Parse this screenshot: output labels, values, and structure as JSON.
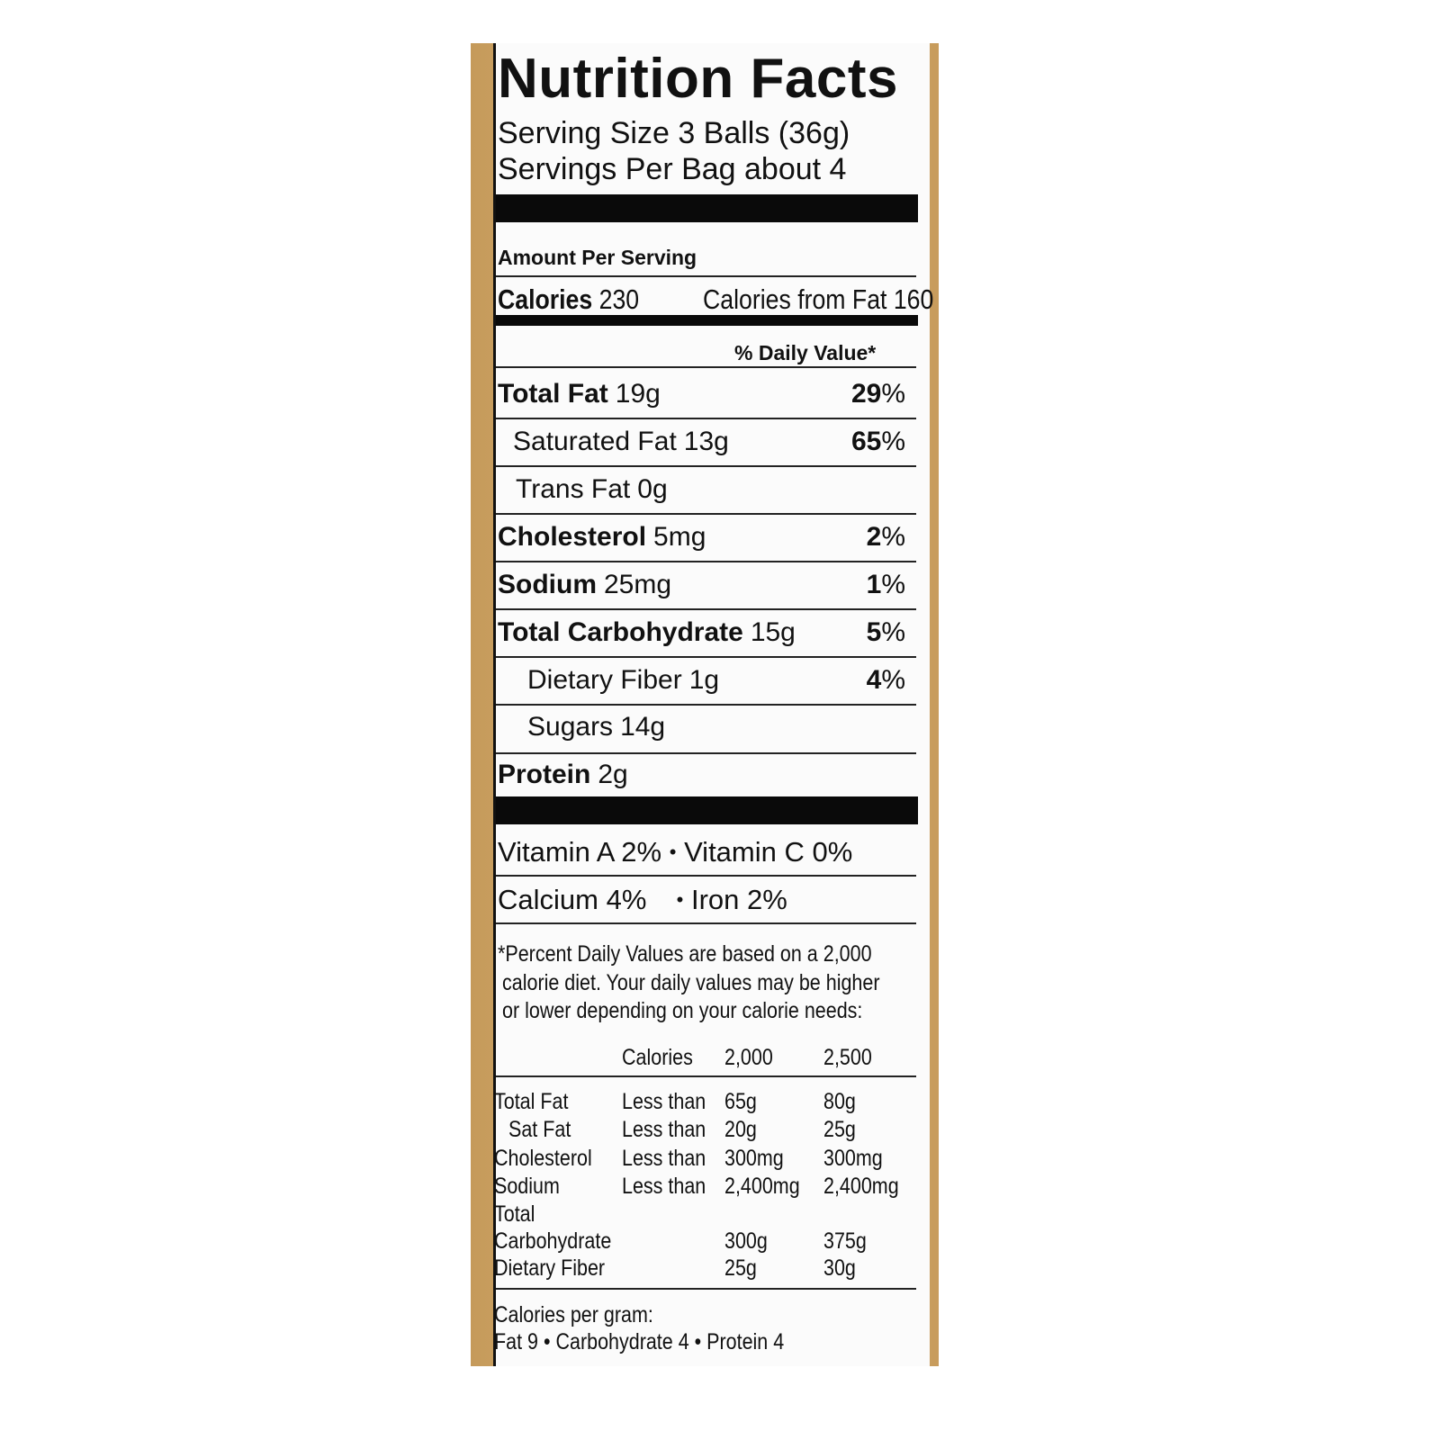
{
  "title": "Nutrition Facts",
  "serving_size": "Serving Size 3 Balls (36g)",
  "servings_per": "Servings Per Bag about 4",
  "amount_per_serving": "Amount Per Serving",
  "calories": {
    "label": "Calories",
    "value": "230",
    "from_fat": "Calories from Fat 160"
  },
  "daily_value_header": "% Daily Value*",
  "nutrients": [
    {
      "name": "Total Fat",
      "amount": "19g",
      "dv": "29",
      "bold": true
    },
    {
      "name": "Saturated Fat",
      "amount": "13g",
      "dv": "65",
      "bold": false
    },
    {
      "name": "Trans Fat",
      "amount": "0g",
      "dv": "",
      "bold": false
    },
    {
      "name": "Cholesterol",
      "amount": "5mg",
      "dv": "2",
      "bold": true
    },
    {
      "name": "Sodium",
      "amount": "25mg",
      "dv": "1",
      "bold": true
    },
    {
      "name": "Total Carbohydrate",
      "amount": "15g",
      "dv": "5",
      "bold": true
    },
    {
      "name": "Dietary Fiber",
      "amount": "1g",
      "dv": "4",
      "bold": false
    },
    {
      "name": "Sugars",
      "amount": "14g",
      "dv": "",
      "bold": false
    },
    {
      "name": "Protein",
      "amount": "2g",
      "dv": "",
      "bold": true
    }
  ],
  "percent_sign": "%",
  "vitamins": {
    "line1_a": "Vitamin A 2%",
    "line1_b": "Vitamin C 0%",
    "line2_a": "Calcium 4%",
    "line2_b": "Iron 2%",
    "bullet": "•"
  },
  "footnote": [
    "*Percent Daily Values are based on a 2,000",
    "calorie diet. Your daily values may be higher",
    "or lower depending on your calorie needs:"
  ],
  "dv_table": {
    "header": [
      "Calories",
      "2,000",
      "2,500"
    ],
    "rows": [
      [
        "Total Fat",
        "Less than",
        "65g",
        "80g"
      ],
      [
        "Sat Fat",
        "Less than",
        "20g",
        "25g"
      ],
      [
        "Cholesterol",
        "Less than",
        "300mg",
        "300mg"
      ],
      [
        "Sodium",
        "Less than",
        "2,400mg",
        "2,400mg"
      ],
      [
        "Total",
        "",
        "",
        ""
      ],
      [
        "Carbohydrate",
        "",
        "300g",
        "375g"
      ],
      [
        "Dietary Fiber",
        "",
        "25g",
        "30g"
      ]
    ]
  },
  "calories_per_gram": {
    "label": "Calories per gram:",
    "values": "Fat 9 • Carbohydrate 4 • Protein 4"
  },
  "colors": {
    "gold": "#c9a060",
    "ink": "#111111"
  }
}
